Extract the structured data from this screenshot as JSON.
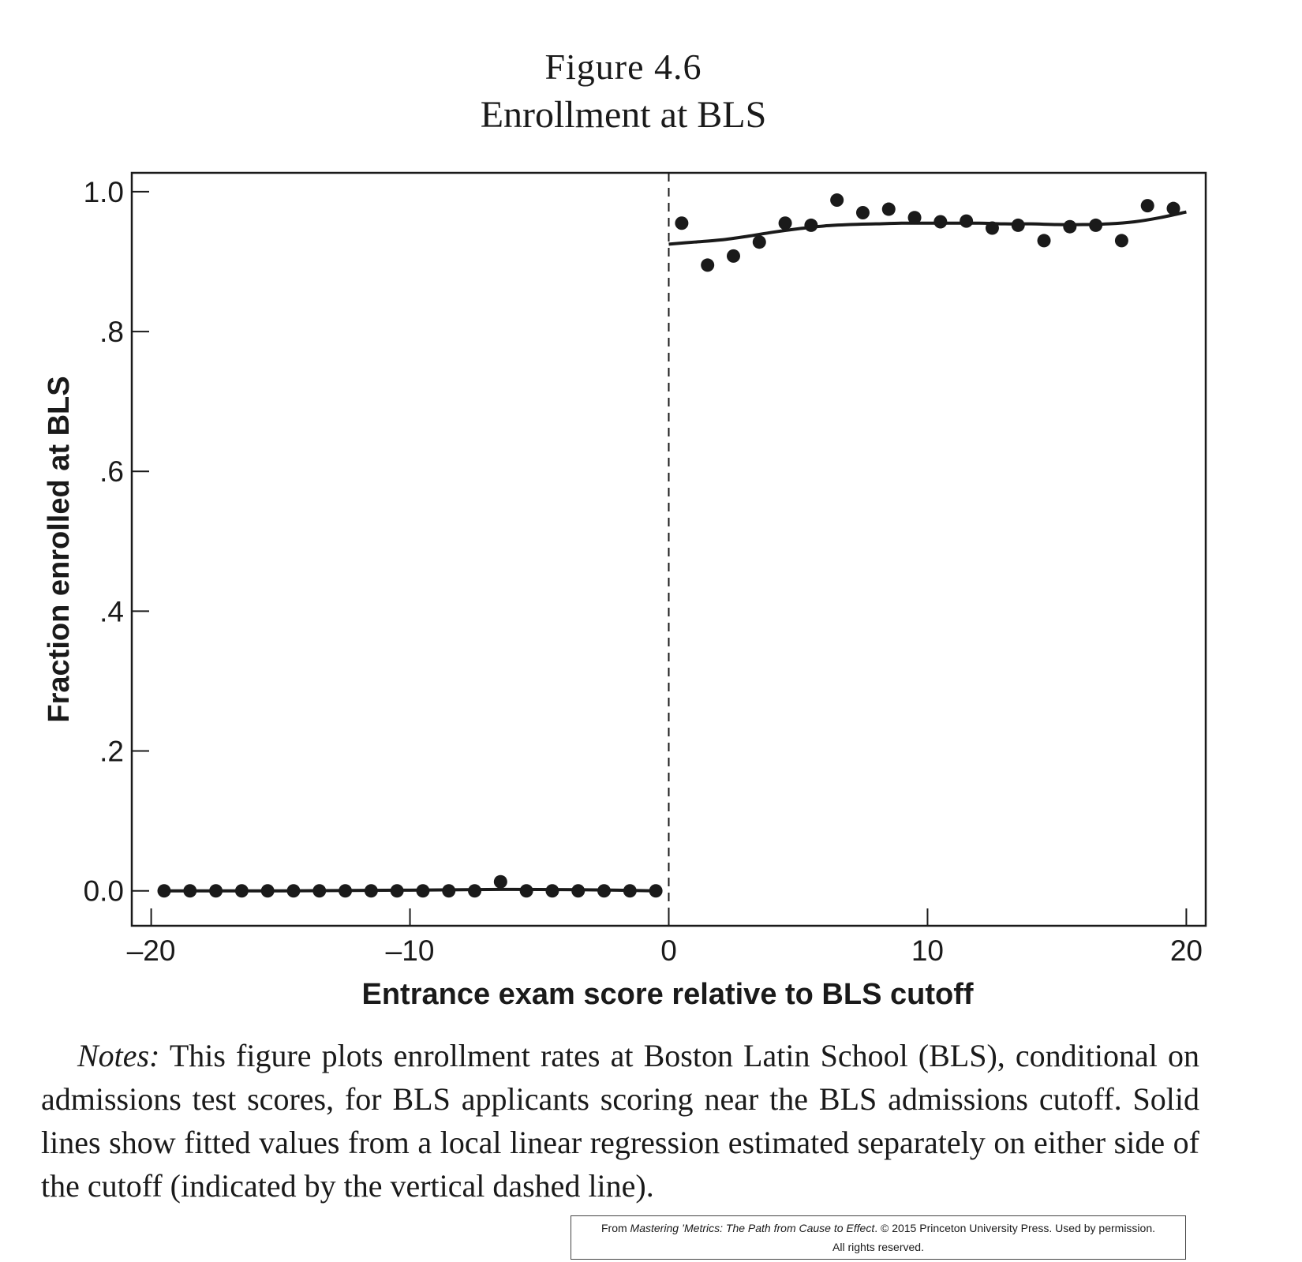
{
  "figure": {
    "label": "Figure 4.6",
    "title": "Enrollment at BLS"
  },
  "chart_data": {
    "type": "scatter",
    "xlabel": "Entrance exam score relative to BLS cutoff",
    "ylabel": "Fraction enrolled at BLS",
    "xlim": [
      -20.75,
      20.75
    ],
    "ylim": [
      -0.05,
      1.027
    ],
    "x_ticks": [
      -20,
      -10,
      0,
      10,
      20
    ],
    "x_tick_labels": [
      "–20",
      "–10",
      "0",
      "10",
      "20"
    ],
    "y_ticks": [
      0,
      0.2,
      0.4,
      0.6,
      0.8,
      1.0
    ],
    "y_tick_labels": [
      "0.0",
      ".2",
      ".4",
      ".6",
      ".8",
      "1.0"
    ],
    "cutoff_x": 0,
    "grid": false,
    "series": [
      {
        "x": [
          -19.5,
          -18.5,
          -17.5,
          -16.5,
          -15.5,
          -14.5,
          -13.5,
          -12.5,
          -11.5,
          -10.5,
          -9.5,
          -8.5,
          -7.5,
          -6.5,
          -5.5,
          -4.5,
          -3.5,
          -2.5,
          -1.5,
          -0.5,
          0.5,
          1.5,
          2.5,
          3.5,
          4.5,
          5.5,
          6.5,
          7.5,
          8.5,
          9.5,
          10.5,
          11.5,
          12.5,
          13.5,
          14.5,
          15.5,
          16.5,
          17.5,
          18.5,
          19.5
        ],
        "y": [
          0.0,
          0.0,
          0.0,
          0.0,
          0.0,
          0.0,
          0.0,
          0.0,
          0.0,
          0.0,
          0.0,
          0.0,
          0.0,
          0.013,
          0.0,
          0.0,
          0.0,
          0.0,
          0.0,
          0.0,
          0.955,
          0.895,
          0.908,
          0.928,
          0.955,
          0.952,
          0.988,
          0.97,
          0.975,
          0.963,
          0.957,
          0.958,
          0.948,
          0.952,
          0.93,
          0.95,
          0.952,
          0.93,
          0.98,
          0.976
        ]
      }
    ],
    "fit_left": {
      "x": [
        -19.5,
        -15,
        -10,
        -7,
        -5,
        -2,
        -0.5
      ],
      "y": [
        0.0,
        0.0,
        0.001,
        0.002,
        0.002,
        0.001,
        0.0
      ]
    },
    "fit_right": {
      "x": [
        0,
        1,
        2,
        3,
        4,
        5,
        6,
        7,
        8,
        9,
        10,
        11,
        12,
        13,
        14,
        15,
        16,
        17,
        18,
        19,
        20
      ],
      "y": [
        0.925,
        0.928,
        0.931,
        0.936,
        0.942,
        0.947,
        0.951,
        0.953,
        0.954,
        0.955,
        0.955,
        0.955,
        0.955,
        0.954,
        0.954,
        0.953,
        0.953,
        0.954,
        0.957,
        0.963,
        0.971
      ]
    }
  },
  "notes": {
    "lead": "Notes:",
    "text": " This figure plots enrollment rates at Boston Latin School (BLS), conditional on admissions test scores, for BLS applicants scoring near the BLS admissions cutoff. Solid lines show fitted values from a local linear regression estimated separately on either side of the cutoff (indicated by the vertical dashed line)."
  },
  "credit": {
    "prefix": "From ",
    "book": "Mastering ’Metrics: The Path from Cause to Effect",
    "suffix": ". © 2015 Princeton University Press. Used by permission.",
    "line2": "All rights reserved."
  }
}
